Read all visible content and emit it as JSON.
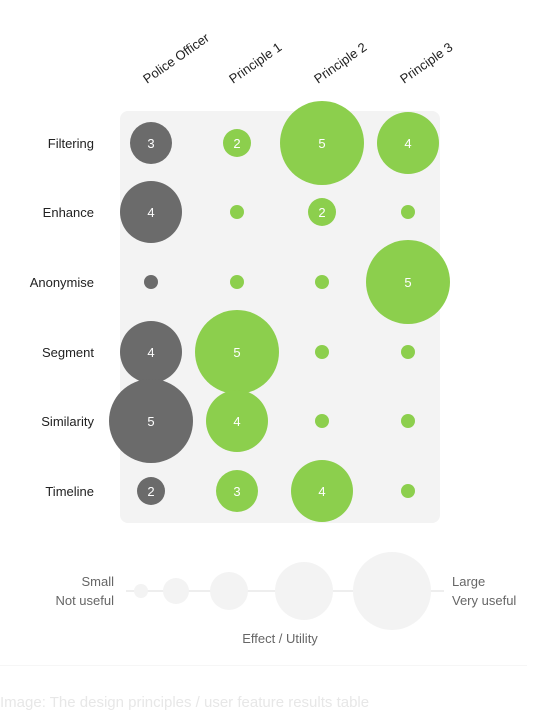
{
  "chart_data": {
    "type": "bubble-matrix",
    "columns": [
      "Police Officer",
      "Principle 1",
      "Principle 2",
      "Principle 3"
    ],
    "rows": [
      "Filtering",
      "Enhance",
      "Anonymise",
      "Segment",
      "Similarity",
      "Timeline"
    ],
    "values": [
      [
        3,
        2,
        5,
        4
      ],
      [
        4,
        1,
        2,
        1
      ],
      [
        1,
        1,
        1,
        5
      ],
      [
        4,
        5,
        1,
        1
      ],
      [
        5,
        4,
        1,
        1
      ],
      [
        2,
        3,
        4,
        1
      ]
    ],
    "show_label_min": 2,
    "size_scale": [
      1,
      5
    ],
    "colors": {
      "police": "#6b6b6b",
      "principle": "#8ccf4d",
      "panel": "#f3f3f3",
      "legend_bubble": "#f3f3f3",
      "legend_line": "#eeeeee",
      "label_text": "#ffffff"
    }
  },
  "legend": {
    "left_top": "Small",
    "left_bottom": "Not useful",
    "right_top": "Large",
    "right_bottom": "Very useful",
    "title": "Effect / Utility",
    "steps": [
      1,
      2,
      3,
      4,
      5
    ]
  },
  "caption": "Image: The design principles / user feature results table"
}
